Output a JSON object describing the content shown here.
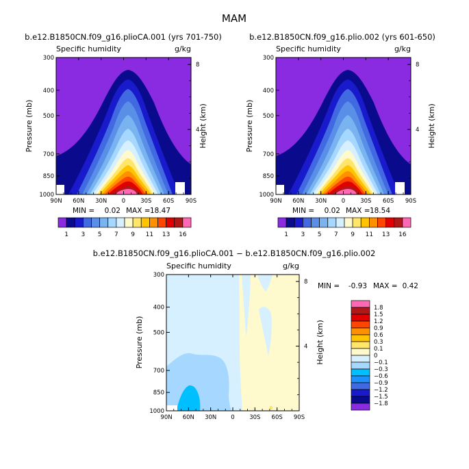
{
  "page": {
    "title": "MAM",
    "panel_left_title": "b.e12.B1850CN.f09_g16.plioCA.001 (yrs 701-750)",
    "panel_right_title": "b.e12.B1850CN.f09_g16.plio.002 (yrs 601-650)",
    "panel_diff_title": "b.e12.B1850CN.f09_g16.plioCA.001 − b.e12.B1850CN.f09_g16.plio.002"
  },
  "chart_data": [
    {
      "id": "left",
      "type": "contour",
      "subtitle": "Specific humidity",
      "units": "g/kg",
      "xlabel": "",
      "ylabel": "Pressure (mb)",
      "ylabel_right": "Height (km)",
      "x_ticks": [
        "90N",
        "60N",
        "30N",
        "0",
        "30S",
        "60S",
        "90S"
      ],
      "y_ticks": [
        "300",
        "400",
        "500",
        "700",
        "850",
        "1000"
      ],
      "y_ticks_right": [
        "8",
        "4"
      ],
      "min_label": "MIN =",
      "min": "0.02",
      "max_label": "MAX =",
      "max": "18.47",
      "levels": [
        1,
        2,
        3,
        4,
        5,
        6,
        7,
        8,
        9,
        10,
        11,
        12,
        13,
        14,
        16
      ],
      "colorbar_labels": [
        "1",
        "3",
        "5",
        "7",
        "9",
        "11",
        "13",
        "16"
      ],
      "colors": [
        "#8a2be2",
        "#0a0a8c",
        "#1a1acd",
        "#4169e1",
        "#5a8fe8",
        "#7ab4f0",
        "#a6d8ff",
        "#d6f0ff",
        "#fffacd",
        "#ffe66a",
        "#ffc300",
        "#ff9000",
        "#ff4500",
        "#e00000",
        "#b01818",
        "#ff69b4"
      ]
    },
    {
      "id": "right",
      "type": "contour",
      "subtitle": "Specific humidity",
      "units": "g/kg",
      "xlabel": "",
      "ylabel": "Pressure (mb)",
      "ylabel_right": "Height (km)",
      "x_ticks": [
        "90N",
        "60N",
        "30N",
        "0",
        "30S",
        "60S",
        "90S"
      ],
      "y_ticks": [
        "300",
        "400",
        "500",
        "700",
        "850",
        "1000"
      ],
      "y_ticks_right": [
        "8",
        "4"
      ],
      "min_label": "MIN =",
      "min": "0.02",
      "max_label": "MAX =",
      "max": "18.54",
      "levels": [
        1,
        2,
        3,
        4,
        5,
        6,
        7,
        8,
        9,
        10,
        11,
        12,
        13,
        14,
        16
      ],
      "colorbar_labels": [
        "1",
        "3",
        "5",
        "7",
        "9",
        "11",
        "13",
        "16"
      ],
      "colors": [
        "#8a2be2",
        "#0a0a8c",
        "#1a1acd",
        "#4169e1",
        "#5a8fe8",
        "#7ab4f0",
        "#a6d8ff",
        "#d6f0ff",
        "#fffacd",
        "#ffe66a",
        "#ffc300",
        "#ff9000",
        "#ff4500",
        "#e00000",
        "#b01818",
        "#ff69b4"
      ]
    },
    {
      "id": "diff",
      "type": "contour",
      "subtitle": "Specific humidity",
      "units": "g/kg",
      "xlabel": "",
      "ylabel": "Pressure (mb)",
      "ylabel_right": "Height (km)",
      "x_ticks": [
        "90N",
        "60N",
        "30N",
        "0",
        "30S",
        "60S",
        "90S"
      ],
      "y_ticks": [
        "300",
        "400",
        "500",
        "700",
        "850",
        "1000"
      ],
      "y_ticks_right": [
        "8",
        "4"
      ],
      "min_label": "MIN =",
      "min": "-0.93",
      "max_label": "MAX =",
      "max": "0.42",
      "levels": [
        -1.8,
        -1.5,
        -1.2,
        -0.9,
        -0.6,
        -0.3,
        -0.1,
        0,
        0.1,
        0.3,
        0.6,
        0.9,
        1.2,
        1.5,
        1.8
      ],
      "colorbar_labels": [
        "1.8",
        "1.5",
        "1.2",
        "0.9",
        "0.6",
        "0.3",
        "0.1",
        "0",
        "−0.1",
        "−0.3",
        "−0.6",
        "−0.9",
        "−1.2",
        "−1.5",
        "−1.8"
      ],
      "colors": [
        "#ff69b4",
        "#b01818",
        "#e00000",
        "#ff4500",
        "#ff9000",
        "#ffc300",
        "#ffe66a",
        "#fffacd",
        "#d6f0ff",
        "#a6d8ff",
        "#00bfff",
        "#1e90ff",
        "#4169e1",
        "#1a1acd",
        "#0a0a8c",
        "#8a2be2"
      ]
    }
  ]
}
